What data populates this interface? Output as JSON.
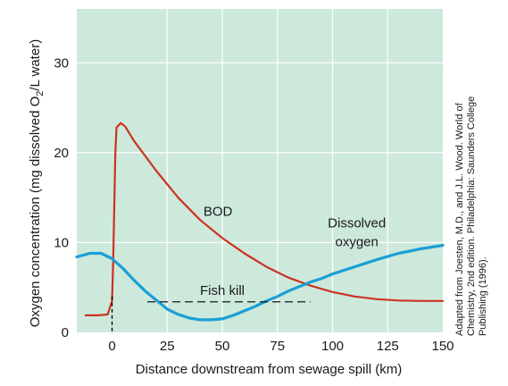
{
  "chart_data": {
    "type": "line",
    "title": "",
    "xlabel": "Distance downstream from sewage spill (km)",
    "ylabel_parts": [
      "Oxygen concentration (mg dissolved O",
      "2",
      "/L water)"
    ],
    "xlim": [
      -16,
      150
    ],
    "ylim": [
      0,
      36
    ],
    "x_ticks": [
      0,
      25,
      50,
      75,
      100,
      125,
      150
    ],
    "y_ticks": [
      0,
      10,
      20,
      30
    ],
    "grid": true,
    "colors": {
      "background": "#cde9dc",
      "grid": "#ffffff",
      "bod": "#cc3322",
      "dissolved_oxygen": "#1a9fd6",
      "annotation": "#000000"
    },
    "series": [
      {
        "key": "bod",
        "points": [
          [
            -12,
            1.9
          ],
          [
            -6,
            1.9
          ],
          [
            -2,
            2.0
          ],
          [
            0,
            3.5
          ],
          [
            0.5,
            8
          ],
          [
            1,
            14
          ],
          [
            1.5,
            20
          ],
          [
            2,
            22.8
          ],
          [
            4,
            23.3
          ],
          [
            6,
            22.9
          ],
          [
            10,
            21.3
          ],
          [
            20,
            18.0
          ],
          [
            30,
            15.0
          ],
          [
            40,
            12.5
          ],
          [
            50,
            10.5
          ],
          [
            60,
            8.8
          ],
          [
            70,
            7.3
          ],
          [
            80,
            6.1
          ],
          [
            90,
            5.2
          ],
          [
            100,
            4.5
          ],
          [
            110,
            4.0
          ],
          [
            120,
            3.7
          ],
          [
            130,
            3.55
          ],
          [
            140,
            3.5
          ],
          [
            150,
            3.5
          ]
        ]
      },
      {
        "key": "dissolved_oxygen",
        "points": [
          [
            -16,
            8.4
          ],
          [
            -10,
            8.8
          ],
          [
            -5,
            8.8
          ],
          [
            0,
            8.2
          ],
          [
            5,
            7.1
          ],
          [
            10,
            5.8
          ],
          [
            15,
            4.6
          ],
          [
            20,
            3.6
          ],
          [
            25,
            2.6
          ],
          [
            30,
            2.0
          ],
          [
            35,
            1.6
          ],
          [
            40,
            1.4
          ],
          [
            45,
            1.4
          ],
          [
            50,
            1.5
          ],
          [
            55,
            1.9
          ],
          [
            60,
            2.4
          ],
          [
            65,
            2.9
          ],
          [
            70,
            3.5
          ],
          [
            75,
            4.0
          ],
          [
            80,
            4.6
          ],
          [
            85,
            5.1
          ],
          [
            90,
            5.6
          ],
          [
            95,
            6.0
          ],
          [
            100,
            6.5
          ],
          [
            110,
            7.3
          ],
          [
            120,
            8.1
          ],
          [
            130,
            8.8
          ],
          [
            140,
            9.3
          ],
          [
            150,
            9.7
          ]
        ]
      }
    ],
    "annotations": {
      "bod_label": {
        "text": "BOD",
        "x": 48,
        "y": 13
      },
      "do_label": [
        "Dissolved",
        "oxygen"
      ],
      "do_label_pos": {
        "x": 111,
        "y": 11.7
      },
      "fish_kill": {
        "text": "Fish kill",
        "x1": 16,
        "x2": 90,
        "y": 3.4,
        "label_x": 50,
        "label_y": 4.2
      },
      "spill_marker": {
        "x": 0,
        "y_top": 4.0
      }
    },
    "credit": [
      "Adapted from Joesten, M.D., and J.L. Wood. World of",
      "Chemistry, 2nd edition. Philadelphia: Saunders College",
      "Publishing (1996)."
    ]
  }
}
